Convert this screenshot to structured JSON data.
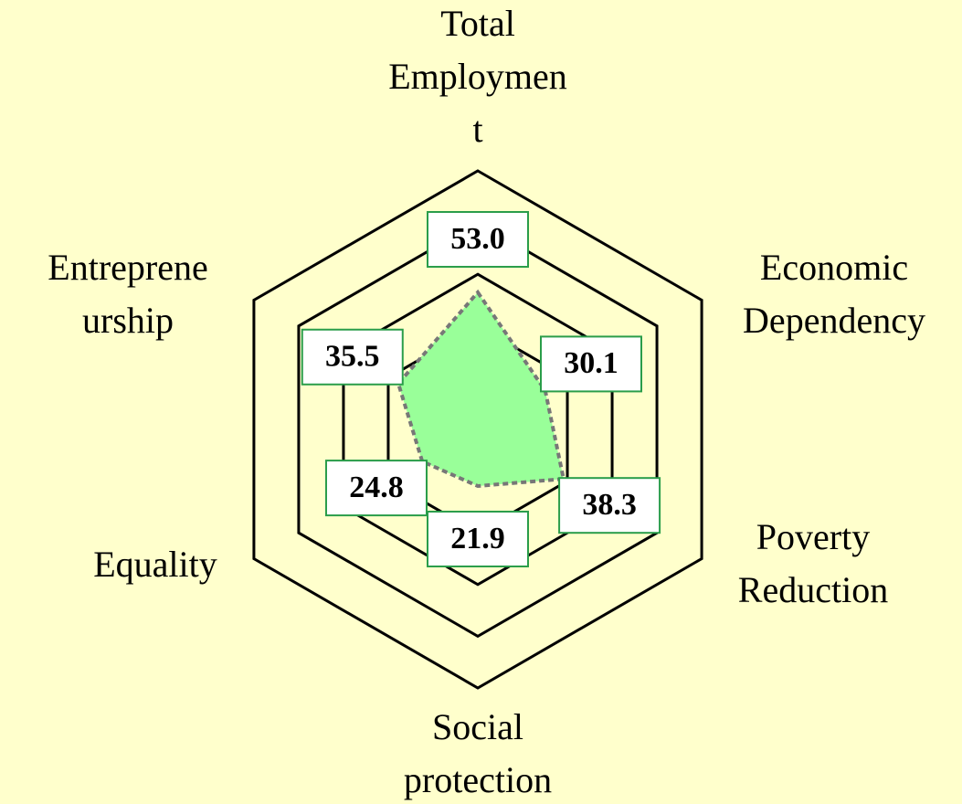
{
  "chart_data": {
    "type": "radar",
    "categories": [
      [
        "Total",
        "Employmen",
        "t"
      ],
      [
        "Economic",
        "Dependency"
      ],
      [
        "Poverty",
        "Reduction"
      ],
      [
        "Social",
        "protection"
      ],
      [
        "Equality"
      ],
      [
        "Entreprene",
        "urship"
      ]
    ],
    "values": [
      53.0,
      30.1,
      38.3,
      21.9,
      24.8,
      35.5
    ],
    "value_labels": [
      "53.0",
      "30.1",
      "38.3",
      "21.9",
      "24.8",
      "35.5"
    ],
    "color": "#99ff99",
    "ylim": [
      0,
      100
    ],
    "yticks": [
      20,
      40,
      60,
      80,
      100
    ],
    "grid": true
  }
}
